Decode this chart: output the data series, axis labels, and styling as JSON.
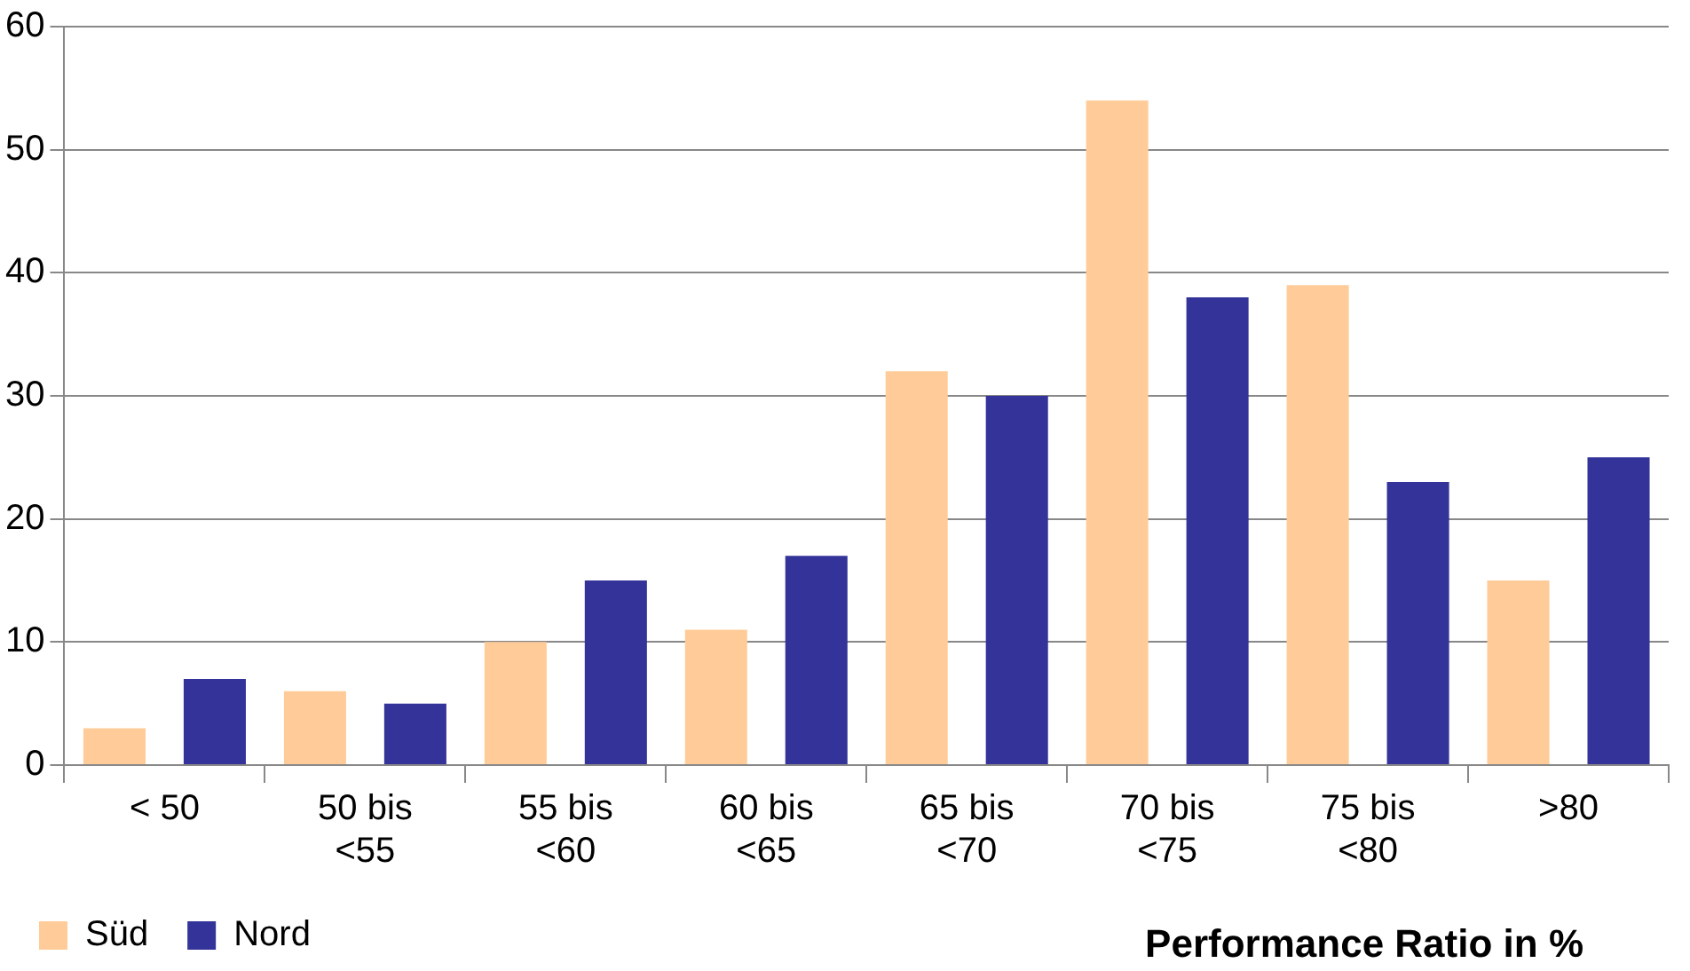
{
  "chart_data": {
    "type": "bar",
    "xlabel": "Performance Ratio in %",
    "categories": [
      "< 50",
      "50 bis\n<55",
      "55 bis\n<60",
      "60 bis\n<65",
      "65 bis\n<70",
      "70 bis\n<75",
      "75 bis\n<80",
      ">80"
    ],
    "series": [
      {
        "name": "Süd",
        "color": "#ffcc99",
        "values": [
          3,
          6,
          10,
          11,
          32,
          54,
          39,
          15
        ]
      },
      {
        "name": "Nord",
        "color": "#333399",
        "values": [
          7,
          5,
          15,
          17,
          30,
          38,
          23,
          25
        ]
      }
    ],
    "ylim": [
      0,
      60
    ],
    "yticks": [
      0,
      10,
      20,
      30,
      40,
      50,
      60
    ],
    "grid": "y",
    "legend": "bottom left"
  }
}
